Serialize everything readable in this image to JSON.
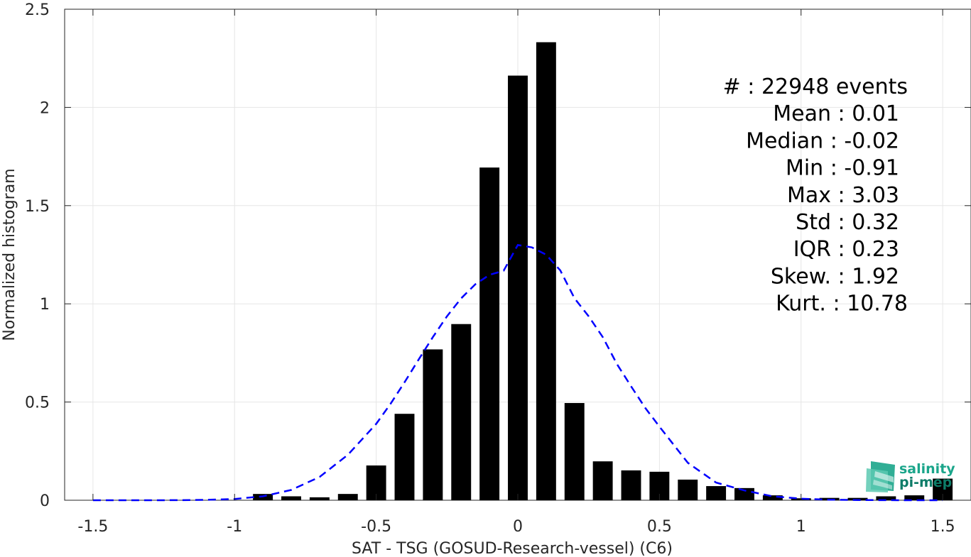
{
  "chart_data": {
    "type": "bar",
    "xlabel": "SAT - TSG (GOSUD-Research-vessel) (C6)",
    "ylabel": "Normalized histogram",
    "xlim": [
      -1.6,
      1.6
    ],
    "ylim": [
      0,
      2.5
    ],
    "xticks": [
      -1.5,
      -1,
      -0.5,
      0,
      0.5,
      1,
      1.5
    ],
    "xtick_labels": [
      "-1.5",
      "-1",
      "-0.5",
      "0",
      "0.5",
      "1",
      "1.5"
    ],
    "yticks": [
      0,
      0.5,
      1,
      1.5,
      2,
      2.5
    ],
    "ytick_labels": [
      "0",
      "0.5",
      "1",
      "1.5",
      "2",
      "2.5"
    ],
    "grid": true,
    "bar_width": 0.07,
    "x": [
      -1.5,
      -1.4,
      -1.3,
      -1.2,
      -1.1,
      -1.0,
      -0.9,
      -0.8,
      -0.7,
      -0.6,
      -0.5,
      -0.4,
      -0.3,
      -0.2,
      -0.1,
      0.0,
      0.1,
      0.2,
      0.3,
      0.4,
      0.5,
      0.6,
      0.7,
      0.8,
      0.9,
      1.0,
      1.1,
      1.2,
      1.3,
      1.4,
      1.5
    ],
    "values": [
      0,
      0,
      0,
      0,
      0,
      0,
      0.032,
      0.02,
      0.015,
      0.032,
      0.177,
      0.44,
      0.768,
      0.897,
      1.694,
      2.162,
      2.332,
      0.495,
      0.198,
      0.152,
      0.145,
      0.105,
      0.072,
      0.062,
      0.025,
      0.01,
      0.012,
      0.012,
      0.02,
      0.025,
      0.11
    ],
    "bar_color": "#000000",
    "fit_curve": {
      "style": "dashed",
      "color": "#0000ff",
      "mean": 0.01,
      "std": 0.305,
      "x": [
        -1.5,
        -1.4,
        -1.3,
        -1.2,
        -1.1,
        -1.0,
        -0.9,
        -0.8,
        -0.7,
        -0.6,
        -0.5,
        -0.45,
        -0.4,
        -0.35,
        -0.3,
        -0.25,
        -0.2,
        -0.15,
        -0.1,
        -0.05,
        0.0,
        0.05,
        0.1,
        0.15,
        0.2,
        0.25,
        0.3,
        0.35,
        0.4,
        0.45,
        0.5,
        0.6,
        0.7,
        0.8,
        0.9,
        1.0,
        1.1,
        1.2,
        1.3,
        1.4,
        1.5
      ],
      "y": [
        0.0,
        0.0,
        0.0001,
        0.0005,
        0.0018,
        0.0065,
        0.0199,
        0.0523,
        0.1186,
        0.2314,
        0.3889,
        0.4898,
        0.6006,
        0.7163,
        0.8305,
        0.9369,
        1.0281,
        1.0997,
        1.1474,
        1.1686,
        1.3,
        1.2873,
        1.25,
        1.17,
        1.0281,
        0.9369,
        0.8305,
        0.6928,
        0.58,
        0.47,
        0.3746,
        0.1907,
        0.09,
        0.05,
        0.02,
        0.008,
        0.003,
        0.001,
        0.0003,
        0.0001,
        0.0
      ]
    },
    "stats_text": [
      "#  : 22948 events",
      "Mean : 0.01",
      "Median : -0.02",
      "Min : -0.91",
      "Max : 3.03",
      "Std : 0.32",
      "IQR : 0.23",
      "Skew. : 1.92",
      "Kurt. : 10.78"
    ]
  },
  "logo": {
    "line1": "salinity",
    "line2": "pi-mep",
    "colors": [
      "#1aa58a",
      "#5cc9b2",
      "#0d7c68"
    ]
  }
}
